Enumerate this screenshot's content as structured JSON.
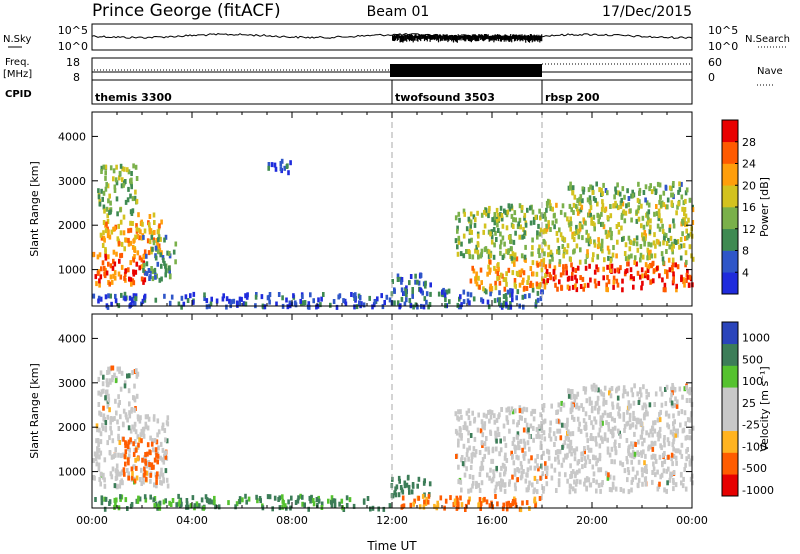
{
  "header": {
    "station": "Prince George (fitACF)",
    "beam": "Beam 01",
    "date": "17/Dec/2015"
  },
  "noise_panel": {
    "left_label": "N.Sky",
    "right_label": "N.Search",
    "left_ticks": [
      "10^5",
      "10^0"
    ],
    "right_ticks": [
      "10^5",
      "10^0"
    ]
  },
  "freq_panel": {
    "left_label_1": "Freq.",
    "left_label_2": "[MHz]",
    "right_label": "Nave",
    "left_ticks": [
      "18",
      "8"
    ],
    "right_ticks": [
      "60",
      "0"
    ]
  },
  "cpid_panel": {
    "label": "CPID",
    "programs": [
      {
        "name": "themis 3300",
        "start_hour": 0
      },
      {
        "name": "twofsound 3503",
        "start_hour": 12
      },
      {
        "name": "rbsp 200",
        "start_hour": 18
      }
    ]
  },
  "colors": {
    "power": [
      "#1f2bdc",
      "#2f56c8",
      "#3f8a52",
      "#7ab04a",
      "#d3c21f",
      "#ff9e0b",
      "#ff5a00",
      "#e80000"
    ],
    "velocity": [
      "#e60000",
      "#ff5c00",
      "#ffb320",
      "#c8c8c8",
      "#c8c8c8",
      "#55c22f",
      "#3c7d58",
      "#2a44bb"
    ],
    "ground_scatter": "#c8c8c8"
  },
  "chart_data": [
    {
      "type": "heatmap",
      "panel": "power",
      "ylabel": "Slant Range [km]",
      "xlabel": "",
      "ylim": [
        180,
        4550
      ],
      "yticks": [
        "1000",
        "2000",
        "3000",
        "4000"
      ],
      "ytick_values": [
        1000,
        2000,
        3000,
        4000
      ],
      "xlim": [
        0,
        24
      ],
      "colorbar": {
        "label": "Power [dB]",
        "ticks": [
          "4",
          "8",
          "12",
          "16",
          "20",
          "24",
          "28"
        ],
        "range": [
          0,
          32
        ]
      },
      "scatter_regions": [
        {
          "t0": 0.0,
          "t1": 2.2,
          "r0": 650,
          "r1": 1400,
          "power": 26
        },
        {
          "t0": 0.3,
          "t1": 2.8,
          "r0": 1400,
          "r1": 2300,
          "power": 21
        },
        {
          "t0": 0.2,
          "t1": 1.8,
          "r0": 2300,
          "r1": 3400,
          "power": 13
        },
        {
          "t0": 2.0,
          "t1": 3.3,
          "r0": 800,
          "r1": 1800,
          "power": 10
        },
        {
          "t0": 0.0,
          "t1": 12.0,
          "r0": 200,
          "r1": 500,
          "power": 5
        },
        {
          "t0": 6.9,
          "t1": 8.0,
          "r0": 3200,
          "r1": 3500,
          "power": 6
        },
        {
          "t0": 11.9,
          "t1": 13.5,
          "r0": 500,
          "r1": 950,
          "power": 7
        },
        {
          "t0": 12.0,
          "t1": 18.0,
          "r0": 200,
          "r1": 600,
          "power": 7
        },
        {
          "t0": 15.0,
          "t1": 18.2,
          "r0": 600,
          "r1": 1300,
          "power": 22
        },
        {
          "t0": 14.5,
          "t1": 18.0,
          "r0": 1300,
          "r1": 2500,
          "power": 14
        },
        {
          "t0": 18.0,
          "t1": 24.0,
          "r0": 600,
          "r1": 1200,
          "power": 27
        },
        {
          "t0": 18.0,
          "t1": 24.0,
          "r0": 1200,
          "r1": 2600,
          "power": 16
        },
        {
          "t0": 19.0,
          "t1": 24.0,
          "r0": 2600,
          "r1": 3000,
          "power": 12
        }
      ]
    },
    {
      "type": "heatmap",
      "panel": "velocity",
      "ylabel": "Slant Range [km]",
      "xlabel": "Time UT",
      "ylim": [
        180,
        4550
      ],
      "yticks": [
        "1000",
        "2000",
        "3000",
        "4000"
      ],
      "ytick_values": [
        1000,
        2000,
        3000,
        4000
      ],
      "xlim": [
        0,
        24
      ],
      "xticks": [
        "00:00",
        "04:00",
        "08:00",
        "12:00",
        "16:00",
        "20:00",
        "00:00"
      ],
      "xtick_values": [
        0,
        4,
        8,
        12,
        16,
        20,
        24
      ],
      "colorbar": {
        "label": "Velocity [m s⁻¹]",
        "ticks": [
          "1000",
          "500",
          "100",
          "25",
          "-25",
          "-100",
          "-500",
          "-1000"
        ]
      },
      "scatter_regions": [
        {
          "t0": 0.0,
          "t1": 3.0,
          "r0": 700,
          "r1": 2300,
          "velocity": 0
        },
        {
          "t0": 0.2,
          "t1": 1.8,
          "r0": 2300,
          "r1": 3400,
          "velocity": 0
        },
        {
          "t0": 1.2,
          "t1": 2.6,
          "r0": 800,
          "r1": 1800,
          "velocity": -150
        },
        {
          "t0": 0.0,
          "t1": 12.0,
          "r0": 200,
          "r1": 500,
          "velocity": 120
        },
        {
          "t0": 11.9,
          "t1": 13.5,
          "r0": 500,
          "r1": 950,
          "velocity": 300
        },
        {
          "t0": 12.0,
          "t1": 18.0,
          "r0": 200,
          "r1": 500,
          "velocity": -120
        },
        {
          "t0": 14.5,
          "t1": 18.0,
          "r0": 600,
          "r1": 2500,
          "velocity": 0
        },
        {
          "t0": 18.0,
          "t1": 24.0,
          "r0": 600,
          "r1": 2600,
          "velocity": 0
        },
        {
          "t0": 19.0,
          "t1": 24.0,
          "r0": 2600,
          "r1": 3000,
          "velocity": 0
        }
      ]
    }
  ]
}
